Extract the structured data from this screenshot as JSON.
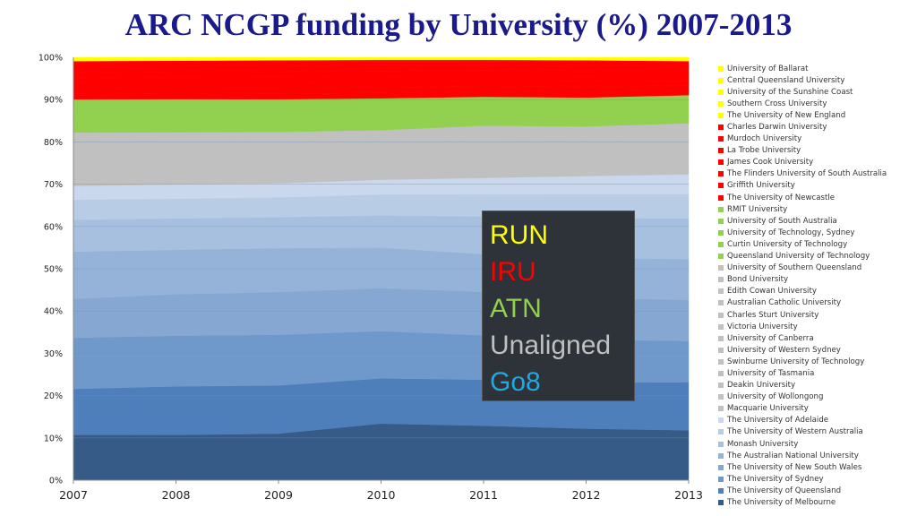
{
  "chart_data": {
    "type": "area",
    "stacked": "percent",
    "title": "ARC NCGP funding by University (%) 2007-2013",
    "x": [
      "2007",
      "2008",
      "2009",
      "2010",
      "2011",
      "2012",
      "2013"
    ],
    "yticks": [
      "0%",
      "10%",
      "20%",
      "30%",
      "40%",
      "50%",
      "60%",
      "70%",
      "80%",
      "90%",
      "100%"
    ],
    "ylim": [
      0,
      100
    ],
    "grid": true,
    "legend_position": "right",
    "groups": [
      {
        "name": "RUN",
        "color": "#ffff00"
      },
      {
        "name": "IRU",
        "color": "#ff0000"
      },
      {
        "name": "ATN",
        "color": "#92d050"
      },
      {
        "name": "Unaligned",
        "color": "#c0c0c0"
      },
      {
        "name": "Go8",
        "color": "#1fa9e1"
      }
    ],
    "series": [
      {
        "name": "University of Ballarat",
        "group": "RUN",
        "color": "#ffff00",
        "values": [
          0.18,
          0.16,
          0.14,
          0.12,
          0.12,
          0.14,
          0.18
        ]
      },
      {
        "name": "Central Queensland University",
        "group": "RUN",
        "color": "#ffff00",
        "values": [
          0.18,
          0.16,
          0.14,
          0.12,
          0.12,
          0.14,
          0.18
        ]
      },
      {
        "name": "University of the Sunshine Coast",
        "group": "RUN",
        "color": "#ffff00",
        "values": [
          0.18,
          0.16,
          0.14,
          0.12,
          0.12,
          0.14,
          0.18
        ]
      },
      {
        "name": "Southern Cross University",
        "group": "RUN",
        "color": "#ffff00",
        "values": [
          0.18,
          0.16,
          0.14,
          0.12,
          0.12,
          0.14,
          0.18
        ]
      },
      {
        "name": "The University of New England",
        "group": "RUN",
        "color": "#ffff00",
        "values": [
          0.18,
          0.16,
          0.14,
          0.12,
          0.12,
          0.14,
          0.18
        ]
      },
      {
        "name": "Charles Darwin University",
        "group": "IRU",
        "color": "#ff0000",
        "values": [
          1.31,
          1.31,
          1.33,
          1.31,
          1.26,
          1.27,
          1.16
        ]
      },
      {
        "name": "Murdoch University",
        "group": "IRU",
        "color": "#ff0000",
        "values": [
          1.31,
          1.31,
          1.33,
          1.31,
          1.26,
          1.27,
          1.16
        ]
      },
      {
        "name": "La Trobe University",
        "group": "IRU",
        "color": "#ff0000",
        "values": [
          1.31,
          1.31,
          1.33,
          1.31,
          1.26,
          1.27,
          1.16
        ]
      },
      {
        "name": "James Cook University",
        "group": "IRU",
        "color": "#ff0000",
        "values": [
          1.31,
          1.31,
          1.33,
          1.31,
          1.26,
          1.27,
          1.16
        ]
      },
      {
        "name": "The Flinders University of South Australia",
        "group": "IRU",
        "color": "#ff0000",
        "values": [
          1.31,
          1.31,
          1.33,
          1.31,
          1.26,
          1.27,
          1.16
        ]
      },
      {
        "name": "Griffith University",
        "group": "IRU",
        "color": "#ff0000",
        "values": [
          1.31,
          1.31,
          1.33,
          1.31,
          1.26,
          1.27,
          1.16
        ]
      },
      {
        "name": "The University of Newcastle",
        "group": "IRU",
        "color": "#ff0000",
        "values": [
          1.31,
          1.31,
          1.33,
          1.31,
          1.26,
          1.27,
          1.16
        ]
      },
      {
        "name": "RMIT University",
        "group": "ATN",
        "color": "#92d050",
        "values": [
          1.58,
          1.58,
          1.56,
          1.52,
          1.38,
          1.38,
          1.34
        ]
      },
      {
        "name": "University of South Australia",
        "group": "ATN",
        "color": "#92d050",
        "values": [
          1.58,
          1.58,
          1.56,
          1.52,
          1.38,
          1.38,
          1.34
        ]
      },
      {
        "name": "University of Technology, Sydney",
        "group": "ATN",
        "color": "#92d050",
        "values": [
          1.58,
          1.58,
          1.56,
          1.52,
          1.38,
          1.38,
          1.34
        ]
      },
      {
        "name": "Curtin University of Technology",
        "group": "ATN",
        "color": "#92d050",
        "values": [
          1.58,
          1.58,
          1.56,
          1.52,
          1.38,
          1.38,
          1.34
        ]
      },
      {
        "name": "Queensland University of Technology",
        "group": "ATN",
        "color": "#92d050",
        "values": [
          1.58,
          1.58,
          1.56,
          1.52,
          1.38,
          1.38,
          1.34
        ]
      },
      {
        "name": "University of Southern Queensland",
        "group": "Unaligned",
        "color": "#c0c0c0",
        "values": [
          0.98,
          0.96,
          0.94,
          0.91,
          0.96,
          0.91,
          0.94
        ]
      },
      {
        "name": "Bond University",
        "group": "Unaligned",
        "color": "#c0c0c0",
        "values": [
          0.98,
          0.96,
          0.94,
          0.91,
          0.96,
          0.91,
          0.94
        ]
      },
      {
        "name": "Edith Cowan University",
        "group": "Unaligned",
        "color": "#c0c0c0",
        "values": [
          0.98,
          0.96,
          0.94,
          0.91,
          0.96,
          0.91,
          0.94
        ]
      },
      {
        "name": "Australian Catholic University",
        "group": "Unaligned",
        "color": "#c0c0c0",
        "values": [
          0.98,
          0.96,
          0.94,
          0.91,
          0.96,
          0.91,
          0.94
        ]
      },
      {
        "name": "Charles Sturt University",
        "group": "Unaligned",
        "color": "#c0c0c0",
        "values": [
          0.98,
          0.96,
          0.94,
          0.91,
          0.96,
          0.91,
          0.94
        ]
      },
      {
        "name": "Victoria University",
        "group": "Unaligned",
        "color": "#c0c0c0",
        "values": [
          0.98,
          0.96,
          0.94,
          0.91,
          0.96,
          0.91,
          0.94
        ]
      },
      {
        "name": "University of Canberra",
        "group": "Unaligned",
        "color": "#c0c0c0",
        "values": [
          0.98,
          0.96,
          0.94,
          0.91,
          0.96,
          0.91,
          0.94
        ]
      },
      {
        "name": "University of Western Sydney",
        "group": "Unaligned",
        "color": "#c0c0c0",
        "values": [
          0.98,
          0.96,
          0.94,
          0.91,
          0.96,
          0.91,
          0.94
        ]
      },
      {
        "name": "Swinburne University of Technology",
        "group": "Unaligned",
        "color": "#c0c0c0",
        "values": [
          0.98,
          0.96,
          0.94,
          0.91,
          0.96,
          0.91,
          0.94
        ]
      },
      {
        "name": "University of Tasmania",
        "group": "Unaligned",
        "color": "#c0c0c0",
        "values": [
          0.98,
          0.96,
          0.94,
          0.91,
          0.96,
          0.91,
          0.94
        ]
      },
      {
        "name": "Deakin University",
        "group": "Unaligned",
        "color": "#c0c0c0",
        "values": [
          0.98,
          0.96,
          0.94,
          0.91,
          0.96,
          0.91,
          0.94
        ]
      },
      {
        "name": "University of Wollongong",
        "group": "Unaligned",
        "color": "#c0c0c0",
        "values": [
          0.98,
          0.96,
          0.94,
          0.91,
          0.96,
          0.91,
          0.94
        ]
      },
      {
        "name": "Macquarie University",
        "group": "Unaligned",
        "color": "#c0c0c0",
        "values": [
          0.98,
          0.96,
          0.94,
          0.91,
          0.96,
          0.91,
          0.94
        ]
      },
      {
        "name": "The University of Adelaide",
        "group": "Go8",
        "color": "#c9d8ec",
        "values": [
          3.3,
          3.4,
          3.4,
          3.5,
          3.9,
          4.3,
          4.7
        ]
      },
      {
        "name": "The University of Western Australia",
        "group": "Go8",
        "color": "#b9cce6",
        "values": [
          4.8,
          4.7,
          4.7,
          5.0,
          5.3,
          5.7,
          5.8
        ]
      },
      {
        "name": "Monash University",
        "group": "Go8",
        "color": "#a7c0e0",
        "values": [
          7.6,
          7.5,
          7.4,
          7.7,
          9.0,
          9.6,
          9.7
        ]
      },
      {
        "name": "The Australian National University",
        "group": "Go8",
        "color": "#95b2d8",
        "values": [
          11.3,
          10.6,
          10.5,
          9.7,
          9.0,
          9.5,
          9.8
        ]
      },
      {
        "name": "The University of New South Wales",
        "group": "Go8",
        "color": "#86a7d1",
        "values": [
          9.3,
          9.9,
          10.2,
          10.2,
          10.4,
          9.9,
          9.8
        ]
      },
      {
        "name": "The University of Sydney",
        "group": "Go8",
        "color": "#7099cb",
        "values": [
          12.2,
          12.1,
          12.1,
          11.3,
          10.6,
          10.3,
          9.8
        ]
      },
      {
        "name": "The University of Queensland",
        "group": "Go8",
        "color": "#4e7fbb",
        "values": [
          11.0,
          11.6,
          11.5,
          10.8,
          11.0,
          11.0,
          11.5
        ]
      },
      {
        "name": "The University of Melbourne",
        "group": "Go8",
        "color": "#365b87",
        "values": [
          10.8,
          10.8,
          11.1,
          13.5,
          13.0,
          12.3,
          11.9
        ]
      }
    ]
  }
}
